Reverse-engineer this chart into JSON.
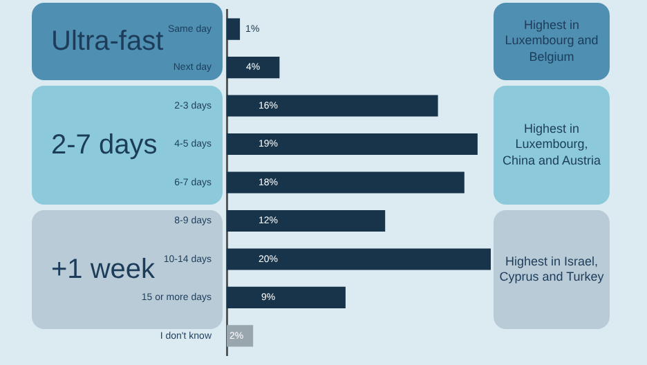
{
  "chart_data": {
    "type": "bar",
    "orientation": "horizontal",
    "categories": [
      "Same day",
      "Next day",
      "2-3 days",
      "4-5 days",
      "6-7 days",
      "8-9 days",
      "10-14 days",
      "15 or more days",
      "I don't know"
    ],
    "values": [
      1,
      4,
      16,
      19,
      18,
      12,
      20,
      9,
      2
    ],
    "colors": [
      "#17344a",
      "#17344a",
      "#17344a",
      "#17344a",
      "#17344a",
      "#17344a",
      "#17344a",
      "#17344a",
      "#9aa6ad"
    ],
    "data_labels": true,
    "value_labels": [
      "1%",
      "4%",
      "16%",
      "19%",
      "18%",
      "12%",
      "20%",
      "9%",
      "2%"
    ],
    "tick_labels": "y",
    "legend": false,
    "annotations": [
      "Ultra-fast",
      "2-7 days",
      "+1 week",
      "Highest in Luxembourg and Belgium",
      "Highest in Luxembourg, China and Austria",
      "Highest in Israel, Cyprus and Turkey"
    ]
  }
}
